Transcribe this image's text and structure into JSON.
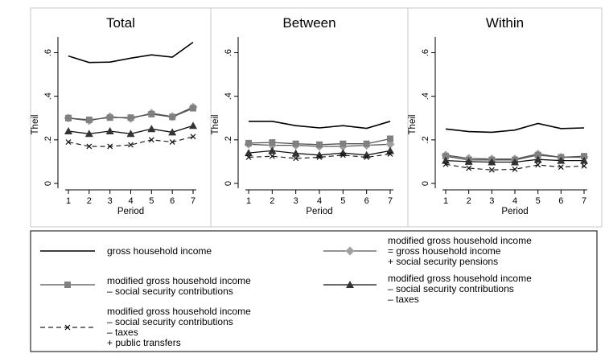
{
  "chart_data": {
    "type": "line",
    "ylabel": "Theil",
    "xlabel": "Period",
    "x": [
      1,
      2,
      3,
      4,
      5,
      6,
      7
    ],
    "ylim": [
      0,
      0.65
    ],
    "yticks": [
      0,
      0.2,
      0.4,
      0.6
    ],
    "ytick_labels": [
      "0",
      ".2",
      ".4",
      ".6"
    ],
    "legend_position": "bottom",
    "legend_entries": [
      {
        "series": 0,
        "lines": [
          "gross household income"
        ]
      },
      {
        "series": 1,
        "lines": [
          "modified gross household income",
          "= gross household income",
          "+ social security pensions"
        ]
      },
      {
        "series": 2,
        "lines": [
          "modified gross household income",
          "– social security contributions"
        ]
      },
      {
        "series": 3,
        "lines": [
          "modified gross household income",
          "– social security contributions",
          "– taxes"
        ]
      },
      {
        "series": 4,
        "lines": [
          "modified gross household income",
          "– social security contributions",
          "– taxes",
          "+ public transfers"
        ]
      }
    ],
    "series_styles": [
      {
        "color": "#000000",
        "dash": "",
        "marker": "none",
        "width": 1.6
      },
      {
        "color": "#555555",
        "dash": "",
        "marker": "diamond",
        "width": 1.3,
        "marker_color": "#a0a0a0"
      },
      {
        "color": "#555555",
        "dash": "",
        "marker": "square",
        "width": 1.3,
        "marker_color": "#808080"
      },
      {
        "color": "#111111",
        "dash": "",
        "marker": "triangle",
        "width": 1.3,
        "marker_color": "#333333"
      },
      {
        "color": "#222222",
        "dash": "6,4",
        "marker": "x",
        "width": 1.2,
        "marker_color": "#111111"
      }
    ],
    "panels": [
      {
        "title": "Total",
        "series": [
          {
            "values": [
              0.585,
              0.555,
              0.557,
              0.575,
              0.59,
              0.58,
              0.648
            ]
          },
          {
            "values": [
              0.3,
              0.288,
              0.306,
              0.298,
              0.322,
              0.307,
              0.35
            ]
          },
          {
            "values": [
              0.3,
              0.292,
              0.302,
              0.302,
              0.318,
              0.305,
              0.345
            ]
          },
          {
            "values": [
              0.24,
              0.228,
              0.24,
              0.228,
              0.25,
              0.235,
              0.265
            ]
          },
          {
            "values": [
              0.19,
              0.17,
              0.17,
              0.177,
              0.2,
              0.19,
              0.215
            ]
          }
        ]
      },
      {
        "title": "Between",
        "series": [
          {
            "values": [
              0.285,
              0.285,
              0.265,
              0.255,
              0.265,
              0.253,
              0.285
            ]
          },
          {
            "values": [
              0.18,
              0.175,
              0.175,
              0.17,
              0.17,
              0.175,
              0.18
            ]
          },
          {
            "values": [
              0.185,
              0.188,
              0.182,
              0.178,
              0.182,
              0.182,
              0.205
            ]
          },
          {
            "values": [
              0.14,
              0.15,
              0.138,
              0.13,
              0.14,
              0.13,
              0.15
            ]
          },
          {
            "values": [
              0.12,
              0.125,
              0.115,
              0.12,
              0.13,
              0.12,
              0.135
            ]
          }
        ]
      },
      {
        "title": "Within",
        "series": [
          {
            "values": [
              0.25,
              0.238,
              0.235,
              0.245,
              0.275,
              0.252,
              0.255
            ]
          },
          {
            "values": [
              0.13,
              0.115,
              0.112,
              0.112,
              0.135,
              0.12,
              0.12
            ]
          },
          {
            "values": [
              0.125,
              0.108,
              0.108,
              0.108,
              0.13,
              0.12,
              0.125
            ]
          },
          {
            "values": [
              0.105,
              0.1,
              0.098,
              0.098,
              0.11,
              0.105,
              0.105
            ]
          },
          {
            "values": [
              0.088,
              0.07,
              0.062,
              0.065,
              0.085,
              0.075,
              0.08
            ]
          }
        ]
      }
    ]
  }
}
